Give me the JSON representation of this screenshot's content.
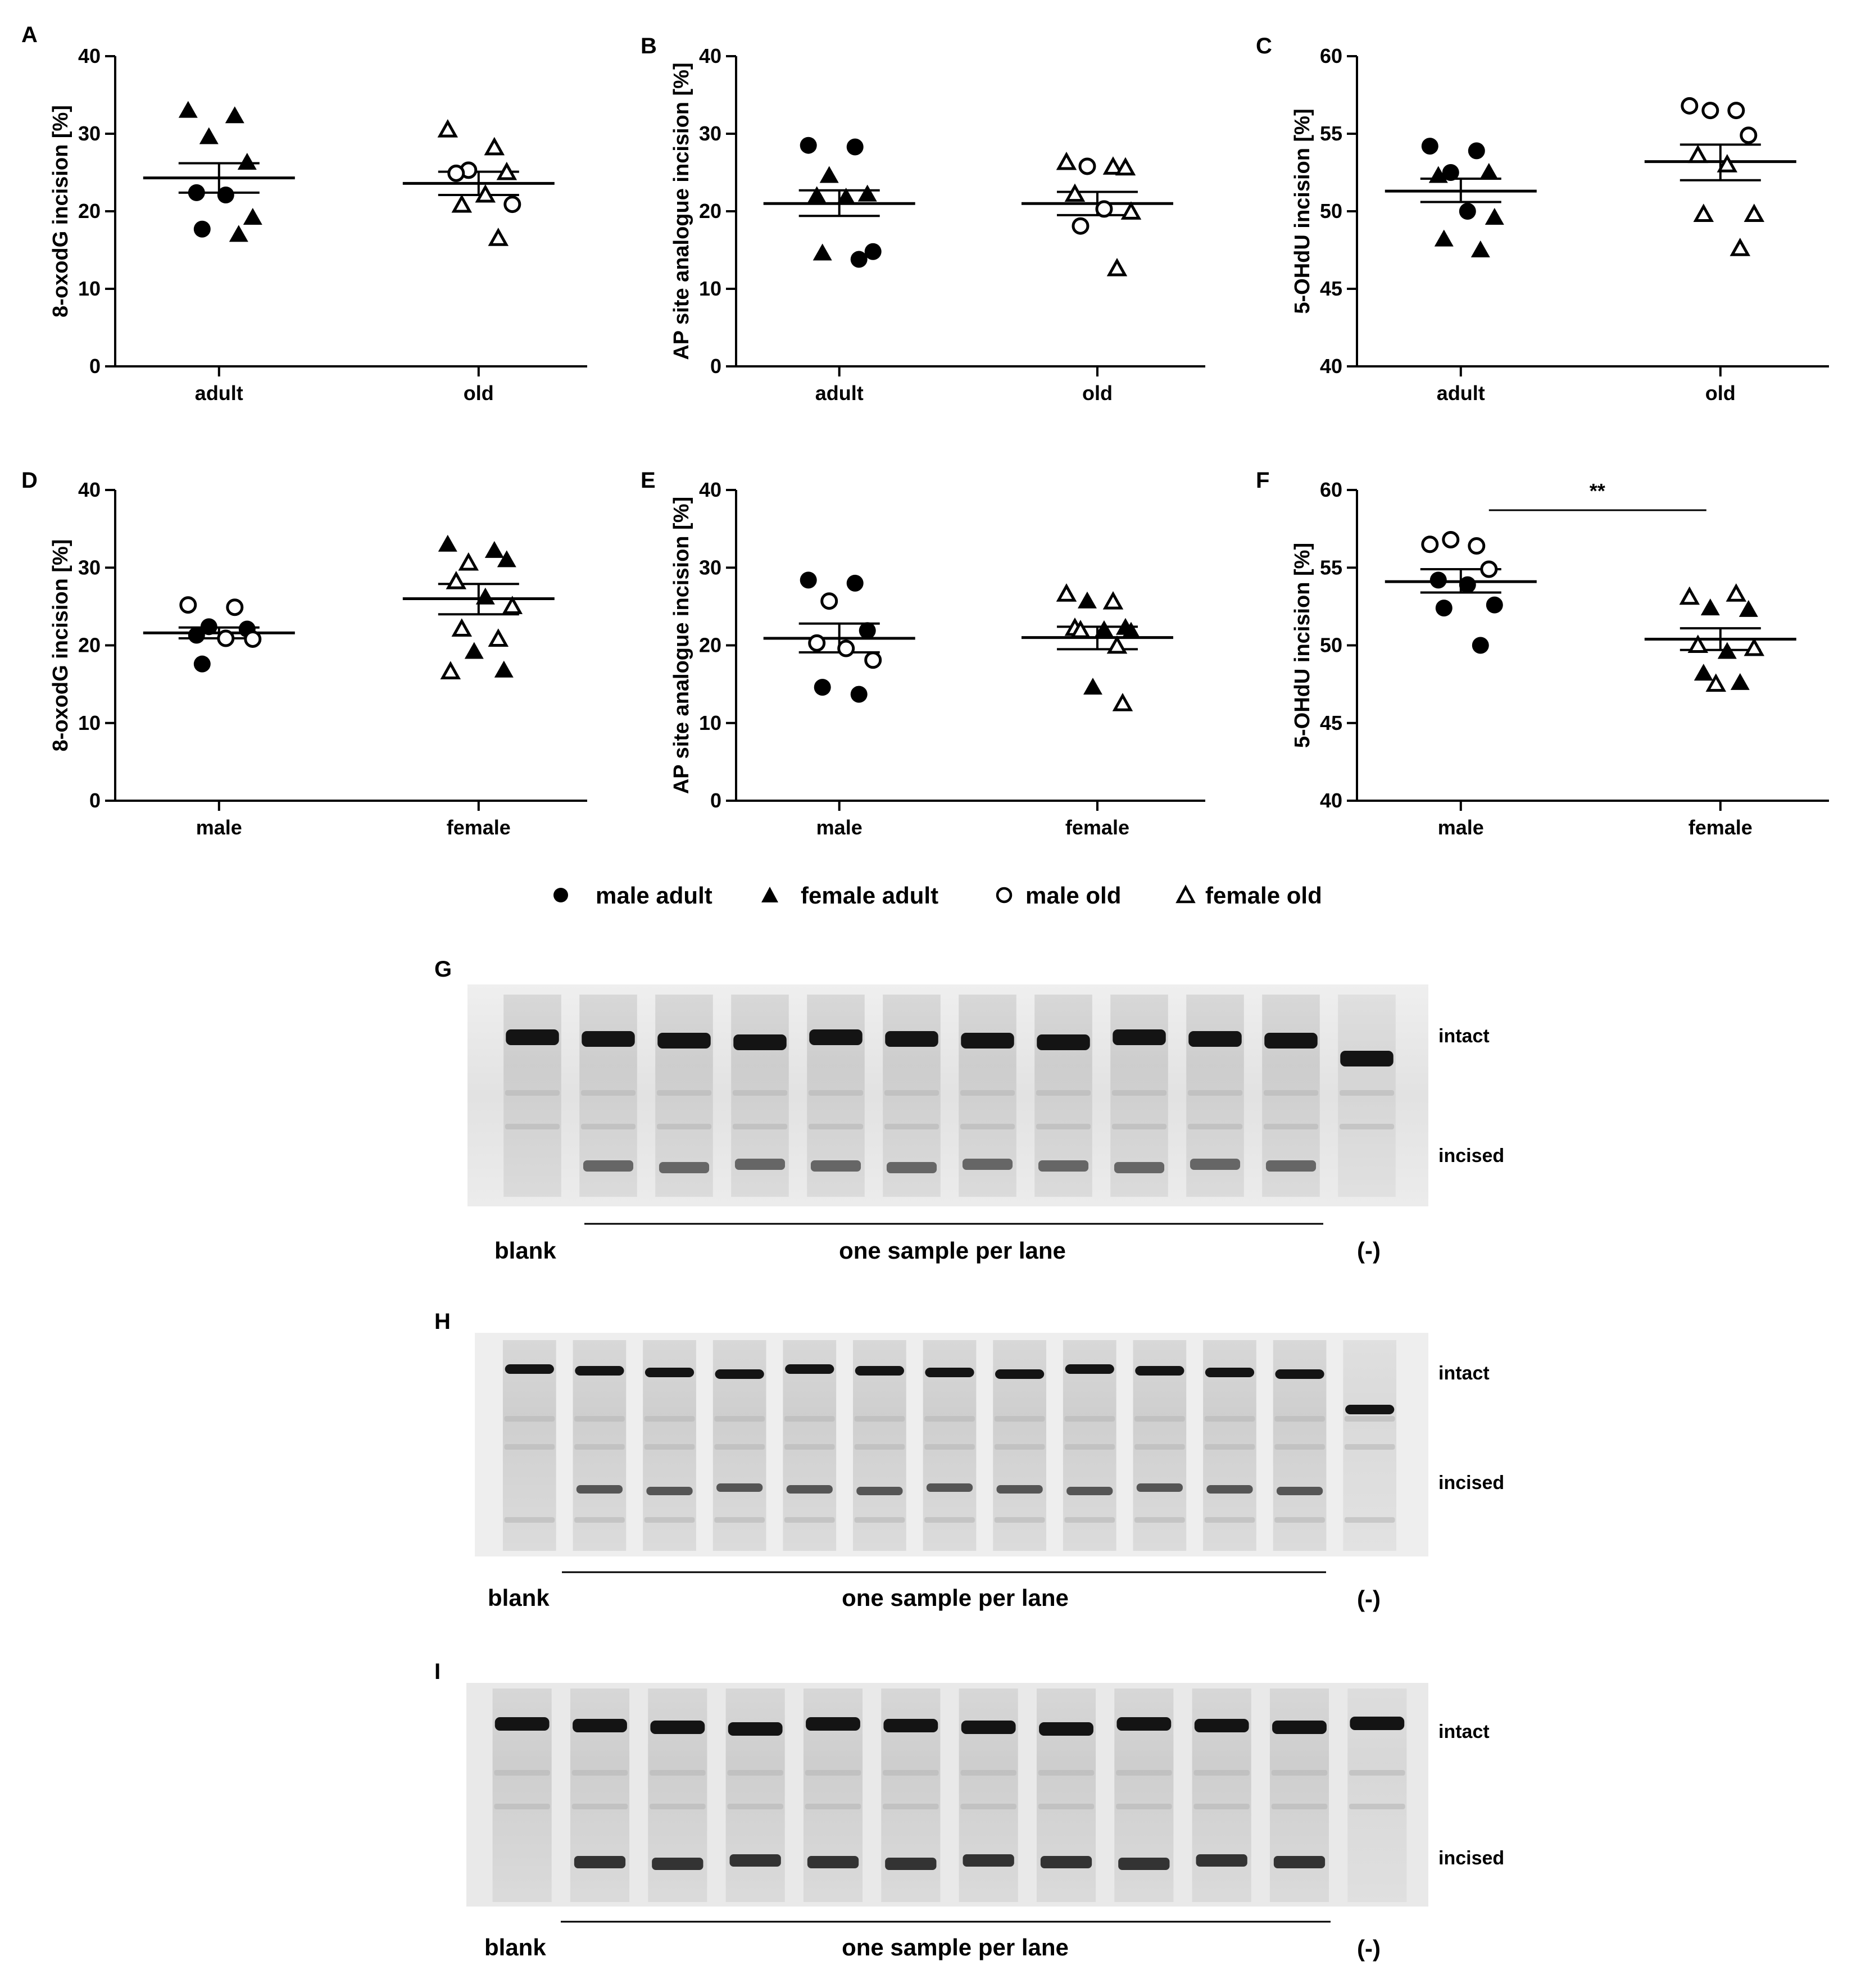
{
  "chart_data": [
    {
      "type": "scatter",
      "panel": "A",
      "ylabel": "8-oxodG incision [%]",
      "ylim": [
        0,
        40
      ],
      "yticks": [
        0,
        10,
        20,
        30,
        40
      ],
      "categories": [
        "adult",
        "old"
      ],
      "groups": [
        {
          "category": "adult",
          "mean": 24.3,
          "sem_low": 22.4,
          "sem_high": 26.2,
          "points": [
            {
              "v": 33.0,
              "g": "female adult"
            },
            {
              "v": 32.3,
              "g": "female adult"
            },
            {
              "v": 29.6,
              "g": "female adult"
            },
            {
              "v": 26.3,
              "g": "female adult"
            },
            {
              "v": 22.4,
              "g": "male adult"
            },
            {
              "v": 22.1,
              "g": "male adult"
            },
            {
              "v": 19.2,
              "g": "female adult"
            },
            {
              "v": 17.7,
              "g": "male adult"
            },
            {
              "v": 17.0,
              "g": "female adult"
            }
          ]
        },
        {
          "category": "old",
          "mean": 23.6,
          "sem_low": 22.1,
          "sem_high": 25.1,
          "points": [
            {
              "v": 30.5,
              "g": "female old"
            },
            {
              "v": 28.2,
              "g": "female old"
            },
            {
              "v": 25.3,
              "g": "male old"
            },
            {
              "v": 25.0,
              "g": "female old"
            },
            {
              "v": 24.9,
              "g": "male old"
            },
            {
              "v": 22.1,
              "g": "female old"
            },
            {
              "v": 20.9,
              "g": "male old"
            },
            {
              "v": 20.8,
              "g": "female old"
            },
            {
              "v": 16.5,
              "g": "female old"
            }
          ]
        }
      ]
    },
    {
      "type": "scatter",
      "panel": "B",
      "ylabel": "AP site analogue incision [%]",
      "ylim": [
        0,
        40
      ],
      "yticks": [
        0,
        10,
        20,
        30,
        40
      ],
      "categories": [
        "adult",
        "old"
      ],
      "groups": [
        {
          "category": "adult",
          "mean": 21.0,
          "sem_low": 19.4,
          "sem_high": 22.7,
          "points": [
            {
              "v": 28.5,
              "g": "male adult"
            },
            {
              "v": 28.3,
              "g": "male adult"
            },
            {
              "v": 24.6,
              "g": "female adult"
            },
            {
              "v": 22.2,
              "g": "female adult"
            },
            {
              "v": 22.0,
              "g": "female adult"
            },
            {
              "v": 21.8,
              "g": "female adult"
            },
            {
              "v": 14.8,
              "g": "male adult"
            },
            {
              "v": 14.6,
              "g": "female adult"
            },
            {
              "v": 13.8,
              "g": "male adult"
            }
          ]
        },
        {
          "category": "old",
          "mean": 21.0,
          "sem_low": 19.5,
          "sem_high": 22.5,
          "points": [
            {
              "v": 26.3,
              "g": "female old"
            },
            {
              "v": 25.7,
              "g": "female old"
            },
            {
              "v": 25.8,
              "g": "male old"
            },
            {
              "v": 25.6,
              "g": "female old"
            },
            {
              "v": 22.2,
              "g": "female old"
            },
            {
              "v": 20.3,
              "g": "male old"
            },
            {
              "v": 19.9,
              "g": "female old"
            },
            {
              "v": 18.1,
              "g": "male old"
            },
            {
              "v": 12.6,
              "g": "female old"
            }
          ]
        }
      ]
    },
    {
      "type": "scatter",
      "panel": "C",
      "ylabel": "5-OHdU incision [%]",
      "ylim": [
        40,
        60
      ],
      "yticks": [
        40,
        45,
        50,
        55,
        60
      ],
      "categories": [
        "adult",
        "old"
      ],
      "groups": [
        {
          "category": "adult",
          "mean": 51.3,
          "sem_low": 50.6,
          "sem_high": 52.1,
          "points": [
            {
              "v": 54.2,
              "g": "male adult"
            },
            {
              "v": 53.9,
              "g": "male adult"
            },
            {
              "v": 52.5,
              "g": "male adult"
            },
            {
              "v": 52.5,
              "g": "female adult"
            },
            {
              "v": 52.3,
              "g": "female adult"
            },
            {
              "v": 50.0,
              "g": "male adult"
            },
            {
              "v": 49.6,
              "g": "female adult"
            },
            {
              "v": 48.2,
              "g": "female adult"
            },
            {
              "v": 47.5,
              "g": "female adult"
            }
          ]
        },
        {
          "category": "old",
          "mean": 53.2,
          "sem_low": 52.0,
          "sem_high": 54.3,
          "points": [
            {
              "v": 56.8,
              "g": "male old"
            },
            {
              "v": 56.5,
              "g": "male old"
            },
            {
              "v": 56.5,
              "g": "male old"
            },
            {
              "v": 54.9,
              "g": "male old"
            },
            {
              "v": 53.6,
              "g": "female old"
            },
            {
              "v": 53.0,
              "g": "female old"
            },
            {
              "v": 49.8,
              "g": "female old"
            },
            {
              "v": 49.8,
              "g": "female old"
            },
            {
              "v": 47.6,
              "g": "female old"
            }
          ]
        }
      ]
    },
    {
      "type": "scatter",
      "panel": "D",
      "ylabel": "8-oxodG incision [%]",
      "ylim": [
        0,
        40
      ],
      "yticks": [
        0,
        10,
        20,
        30,
        40
      ],
      "categories": [
        "male",
        "female"
      ],
      "groups": [
        {
          "category": "male",
          "mean": 21.6,
          "sem_low": 20.9,
          "sem_high": 22.3,
          "points": [
            {
              "v": 25.2,
              "g": "male old"
            },
            {
              "v": 24.9,
              "g": "male old"
            },
            {
              "v": 22.4,
              "g": "male adult"
            },
            {
              "v": 22.1,
              "g": "male adult"
            },
            {
              "v": 21.3,
              "g": "male adult"
            },
            {
              "v": 20.9,
              "g": "male old"
            },
            {
              "v": 20.8,
              "g": "male old"
            },
            {
              "v": 17.6,
              "g": "male adult"
            }
          ]
        },
        {
          "category": "female",
          "mean": 26.0,
          "sem_low": 24.0,
          "sem_high": 27.9,
          "points": [
            {
              "v": 33.0,
              "g": "female adult"
            },
            {
              "v": 32.2,
              "g": "female adult"
            },
            {
              "v": 30.6,
              "g": "female old"
            },
            {
              "v": 31.0,
              "g": "female adult"
            },
            {
              "v": 28.2,
              "g": "female old"
            },
            {
              "v": 26.2,
              "g": "female adult"
            },
            {
              "v": 25.0,
              "g": "female old"
            },
            {
              "v": 22.1,
              "g": "female old"
            },
            {
              "v": 20.8,
              "g": "female old"
            },
            {
              "v": 19.2,
              "g": "female adult"
            },
            {
              "v": 16.8,
              "g": "female adult"
            },
            {
              "v": 16.6,
              "g": "female old"
            }
          ]
        }
      ]
    },
    {
      "type": "scatter",
      "panel": "E",
      "ylabel": "AP site analogue incision [%]",
      "ylim": [
        0,
        40
      ],
      "yticks": [
        0,
        10,
        20,
        30,
        40
      ],
      "categories": [
        "male",
        "female"
      ],
      "groups": [
        {
          "category": "male",
          "mean": 20.9,
          "sem_low": 19.1,
          "sem_high": 22.8,
          "points": [
            {
              "v": 28.4,
              "g": "male adult"
            },
            {
              "v": 28.0,
              "g": "male adult"
            },
            {
              "v": 25.7,
              "g": "male old"
            },
            {
              "v": 21.9,
              "g": "male adult"
            },
            {
              "v": 20.3,
              "g": "male old"
            },
            {
              "v": 19.6,
              "g": "male old"
            },
            {
              "v": 18.1,
              "g": "male old"
            },
            {
              "v": 14.6,
              "g": "male adult"
            },
            {
              "v": 13.7,
              "g": "male adult"
            }
          ]
        },
        {
          "category": "female",
          "mean": 21.0,
          "sem_low": 19.5,
          "sem_high": 22.4,
          "points": [
            {
              "v": 26.6,
              "g": "female old"
            },
            {
              "v": 25.6,
              "g": "female old"
            },
            {
              "v": 25.7,
              "g": "female adult"
            },
            {
              "v": 22.3,
              "g": "female adult"
            },
            {
              "v": 22.2,
              "g": "female old"
            },
            {
              "v": 22.0,
              "g": "female adult"
            },
            {
              "v": 21.8,
              "g": "female adult"
            },
            {
              "v": 21.9,
              "g": "female old"
            },
            {
              "v": 19.9,
              "g": "female old"
            },
            {
              "v": 14.6,
              "g": "female adult"
            },
            {
              "v": 12.5,
              "g": "female old"
            }
          ]
        }
      ]
    },
    {
      "type": "scatter",
      "panel": "F",
      "ylabel": "5-OHdU incision [%]",
      "ylim": [
        40,
        60
      ],
      "yticks": [
        40,
        45,
        50,
        55,
        60
      ],
      "categories": [
        "male",
        "female"
      ],
      "significance": "**",
      "groups": [
        {
          "category": "male",
          "mean": 54.1,
          "sem_low": 53.4,
          "sem_high": 54.9,
          "points": [
            {
              "v": 56.5,
              "g": "male old"
            },
            {
              "v": 56.4,
              "g": "male old"
            },
            {
              "v": 56.8,
              "g": "male old"
            },
            {
              "v": 54.9,
              "g": "male old"
            },
            {
              "v": 54.2,
              "g": "male adult"
            },
            {
              "v": 53.9,
              "g": "male adult"
            },
            {
              "v": 52.6,
              "g": "male adult"
            },
            {
              "v": 52.4,
              "g": "male adult"
            },
            {
              "v": 50.0,
              "g": "male adult"
            }
          ]
        },
        {
          "category": "female",
          "mean": 50.4,
          "sem_low": 49.7,
          "sem_high": 51.1,
          "points": [
            {
              "v": 53.1,
              "g": "female old"
            },
            {
              "v": 53.3,
              "g": "female old"
            },
            {
              "v": 52.4,
              "g": "female adult"
            },
            {
              "v": 52.3,
              "g": "female adult"
            },
            {
              "v": 50.0,
              "g": "female old"
            },
            {
              "v": 49.6,
              "g": "female adult"
            },
            {
              "v": 49.8,
              "g": "female old"
            },
            {
              "v": 48.2,
              "g": "female adult"
            },
            {
              "v": 47.6,
              "g": "female adult"
            },
            {
              "v": 47.5,
              "g": "female old"
            }
          ]
        }
      ]
    }
  ],
  "legend": {
    "entries": [
      {
        "label": "male adult",
        "marker": "circle-filled"
      },
      {
        "label": "female adult",
        "marker": "triangle-filled"
      },
      {
        "label": "male old",
        "marker": "circle-open"
      },
      {
        "label": "female old",
        "marker": "triangle-open"
      }
    ]
  },
  "gels": [
    {
      "panel": "G",
      "blank_label": "blank",
      "samples_label": "one sample per lane",
      "neg_label": "(-)",
      "intact_label": "intact",
      "incised_label": "incised",
      "sample_lanes": 10
    },
    {
      "panel": "H",
      "blank_label": "blank",
      "samples_label": "one sample per lane",
      "neg_label": "(-)",
      "intact_label": "intact",
      "incised_label": "incised",
      "sample_lanes": 11
    },
    {
      "panel": "I",
      "blank_label": "blank",
      "samples_label": "one sample per lane",
      "neg_label": "(-)",
      "intact_label": "intact",
      "incised_label": "incised",
      "sample_lanes": 10
    }
  ],
  "colors": {
    "ink": "#000000",
    "gel_background": "#e6e6e6",
    "band": "#141414"
  }
}
